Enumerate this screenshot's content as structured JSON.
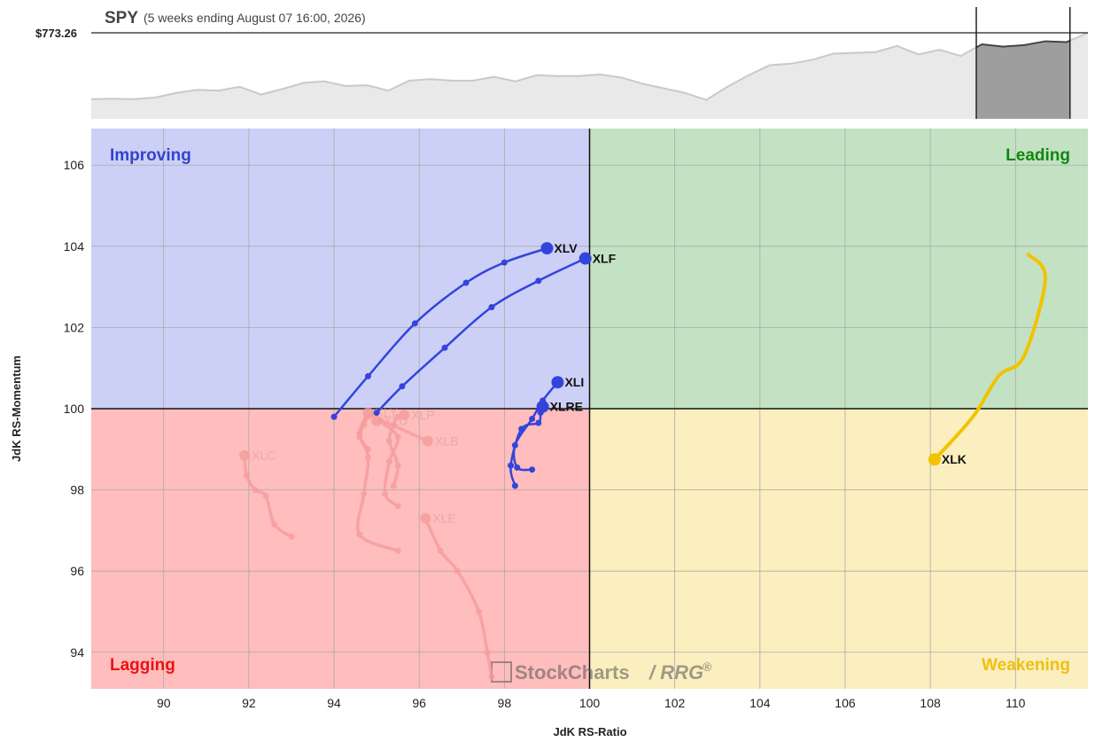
{
  "header": {
    "symbol": "SPY",
    "period": "(5 weeks ending August 07 16:00, 2026)",
    "price_label": "$773.26"
  },
  "watermark": {
    "brand": "StockCharts",
    "product": "/ RRG",
    "reg": "®"
  },
  "colors": {
    "improving_bg": "#ccd0f6",
    "leading_bg": "#c3e2c3",
    "lagging_bg": "#ffbdbd",
    "weakening_bg": "#fbefbf",
    "improving_text": "#3344cc",
    "leading_text": "#118811",
    "lagging_text": "#ee1111",
    "weakening_text": "#eec010",
    "blue_tail": "#3344dd",
    "yellow_tail": "#f2c200",
    "faded_tail": "#f59a9a"
  },
  "chart_data": {
    "type": "scatter",
    "subtype": "relative-rotation-graph",
    "xlabel": "JdK RS-Ratio",
    "ylabel": "JdK RS-Momentum",
    "xlim": [
      88.3,
      111.7
    ],
    "ylim": [
      93.1,
      106.9
    ],
    "xticks": [
      90,
      92,
      94,
      96,
      98,
      100,
      102,
      104,
      106,
      108,
      110
    ],
    "yticks": [
      94,
      96,
      98,
      100,
      102,
      104,
      106
    ],
    "grid": true,
    "quadrants": {
      "top_left": "Improving",
      "top_right": "Leading",
      "bottom_left": "Lagging",
      "bottom_right": "Weakening"
    },
    "series": [
      {
        "name": "XLV",
        "highlight": true,
        "color": "blue",
        "points": [
          [
            94.0,
            99.8
          ],
          [
            94.8,
            100.8
          ],
          [
            95.9,
            102.1
          ],
          [
            97.1,
            103.1
          ],
          [
            98.0,
            103.6
          ],
          [
            99.0,
            103.95
          ]
        ]
      },
      {
        "name": "XLF",
        "highlight": true,
        "color": "blue",
        "points": [
          [
            95.0,
            99.9
          ],
          [
            95.6,
            100.55
          ],
          [
            96.6,
            101.5
          ],
          [
            97.7,
            102.5
          ],
          [
            98.8,
            103.15
          ],
          [
            99.9,
            103.7
          ]
        ]
      },
      {
        "name": "XLI",
        "highlight": true,
        "color": "blue",
        "points": [
          [
            98.65,
            98.5
          ],
          [
            98.3,
            98.55
          ],
          [
            98.25,
            99.1
          ],
          [
            98.65,
            99.75
          ],
          [
            98.9,
            100.2
          ],
          [
            99.25,
            100.65
          ]
        ]
      },
      {
        "name": "XLRE",
        "highlight": true,
        "color": "blue",
        "points": [
          [
            98.25,
            98.1
          ],
          [
            98.15,
            98.6
          ],
          [
            98.4,
            99.5
          ],
          [
            98.8,
            99.65
          ],
          [
            98.85,
            99.9
          ],
          [
            98.9,
            100.05
          ]
        ]
      },
      {
        "name": "XLK",
        "highlight": true,
        "color": "yellow",
        "points": [
          [
            110.3,
            103.8
          ],
          [
            110.7,
            103.2
          ],
          [
            110.2,
            101.3
          ],
          [
            109.6,
            100.8
          ],
          [
            109.0,
            99.8
          ],
          [
            108.1,
            98.75
          ]
        ]
      },
      {
        "name": "XLC",
        "highlight": false,
        "points": [
          [
            93.0,
            96.85
          ],
          [
            92.6,
            97.15
          ],
          [
            92.4,
            97.85
          ],
          [
            92.15,
            98.0
          ],
          [
            91.95,
            98.35
          ],
          [
            91.9,
            98.85
          ]
        ]
      },
      {
        "name": "XLY",
        "highlight": false,
        "points": [
          [
            95.5,
            96.5
          ],
          [
            94.6,
            96.9
          ],
          [
            94.7,
            97.9
          ],
          [
            94.8,
            98.8
          ],
          [
            94.6,
            99.4
          ],
          [
            94.8,
            99.9
          ]
        ]
      },
      {
        "name": "XLU",
        "highlight": false,
        "points": [
          [
            94.8,
            99.0
          ],
          [
            94.6,
            99.3
          ],
          [
            94.7,
            99.6
          ],
          [
            94.8,
            99.8
          ],
          [
            94.9,
            99.85
          ],
          [
            95.0,
            99.7
          ]
        ]
      },
      {
        "name": "XLP",
        "highlight": false,
        "points": [
          [
            95.4,
            98.1
          ],
          [
            95.5,
            98.6
          ],
          [
            95.3,
            99.2
          ],
          [
            95.4,
            99.6
          ],
          [
            95.5,
            99.8
          ],
          [
            95.65,
            99.85
          ]
        ]
      },
      {
        "name": "XLB",
        "highlight": false,
        "points": [
          [
            95.5,
            97.6
          ],
          [
            95.2,
            97.9
          ],
          [
            95.3,
            98.7
          ],
          [
            95.5,
            99.3
          ],
          [
            95.1,
            99.7
          ],
          [
            96.2,
            99.2
          ]
        ]
      },
      {
        "name": "XLE",
        "highlight": false,
        "points": [
          [
            97.7,
            93.4
          ],
          [
            97.6,
            94.0
          ],
          [
            97.4,
            95.0
          ],
          [
            96.9,
            96.0
          ],
          [
            96.5,
            96.5
          ],
          [
            96.15,
            97.3
          ]
        ]
      }
    ],
    "spy_price": {
      "last_value": 773.26,
      "values": [
        0.14,
        0.145,
        0.14,
        0.16,
        0.22,
        0.26,
        0.25,
        0.3,
        0.2,
        0.27,
        0.35,
        0.37,
        0.31,
        0.32,
        0.25,
        0.38,
        0.4,
        0.38,
        0.38,
        0.43,
        0.37,
        0.45,
        0.44,
        0.44,
        0.46,
        0.42,
        0.34,
        0.28,
        0.22,
        0.13,
        0.3,
        0.45,
        0.58,
        0.6,
        0.65,
        0.73,
        0.74,
        0.75,
        0.83,
        0.72,
        0.78,
        0.7,
        0.85,
        0.82,
        0.84,
        0.89,
        0.88,
        1.0
      ]
    }
  }
}
